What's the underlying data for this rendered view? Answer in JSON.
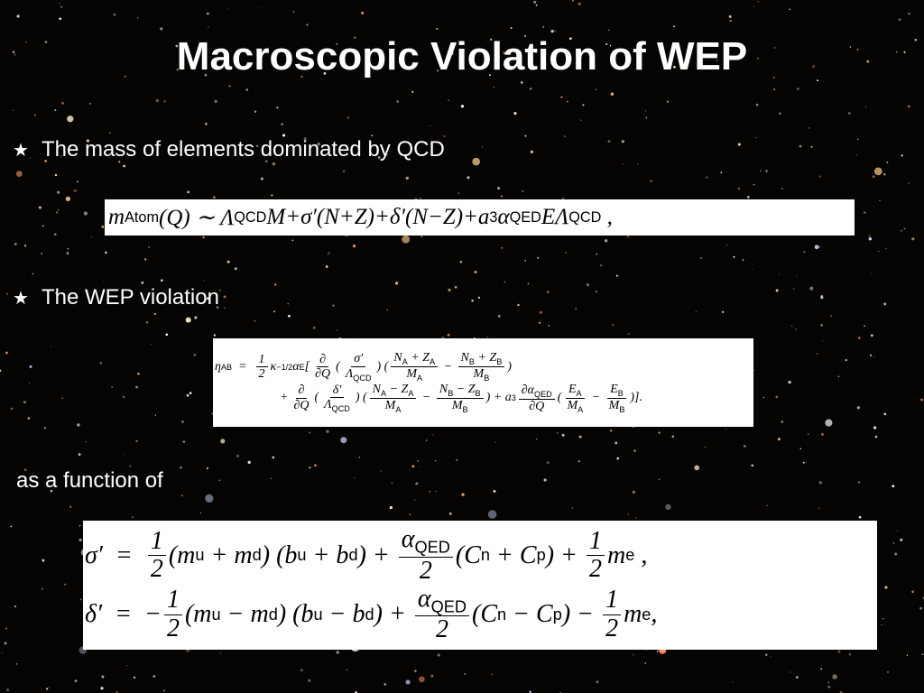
{
  "title": "Macroscopic Violation of WEP",
  "bullets": [
    "The mass of elements dominated by QCD",
    "The WEP violation"
  ],
  "note": "as a function of",
  "equations": [
    {
      "lines": [
        [
          {
            "t": "m",
            "sub": "Atom"
          },
          {
            "t": "(Q) ∼ Λ",
            "sub": "QCD"
          },
          {
            "t": "M+σ′(N+Z)+δ′(N−Z)+a",
            "sub": "3"
          },
          {
            "t": "α",
            "sub": "QED"
          },
          {
            "t": "EΛ",
            "sub": "QCD"
          },
          {
            "t": " ,"
          }
        ]
      ]
    },
    {
      "lines": [
        [
          {
            "t": "η",
            "sub": "AB"
          },
          {
            "t": "  =  "
          },
          {
            "num": [
              {
                "t": "1"
              }
            ],
            "den": [
              {
                "t": "2"
              }
            ]
          },
          {
            "t": "κ",
            "sup": "−1/2"
          },
          {
            "t": "α",
            "sub": "E"
          },
          {
            "t": "["
          },
          {
            "num": [
              {
                "t": "∂"
              }
            ],
            "den": [
              {
                "t": "∂Q"
              }
            ]
          },
          {
            "t": "("
          },
          {
            "num": [
              {
                "t": "σ′"
              }
            ],
            "den": [
              {
                "t": "Λ",
                "sub": "QCD"
              }
            ]
          },
          {
            "t": ") ("
          },
          {
            "num": [
              {
                "t": "N",
                "sub": "A"
              },
              {
                "t": " + Z",
                "sub": "A"
              }
            ],
            "den": [
              {
                "t": "M",
                "sub": "A"
              }
            ]
          },
          {
            "t": " − "
          },
          {
            "num": [
              {
                "t": "N",
                "sub": "B"
              },
              {
                "t": " + Z",
                "sub": "B"
              }
            ],
            "den": [
              {
                "t": "M",
                "sub": "B"
              }
            ]
          },
          {
            "t": ")"
          }
        ],
        [
          {
            "t": "+"
          },
          {
            "num": [
              {
                "t": "∂"
              }
            ],
            "den": [
              {
                "t": "∂Q"
              }
            ]
          },
          {
            "t": "("
          },
          {
            "num": [
              {
                "t": "δ′"
              }
            ],
            "den": [
              {
                "t": "Λ",
                "sub": "QCD"
              }
            ]
          },
          {
            "t": ") ("
          },
          {
            "num": [
              {
                "t": "N",
                "sub": "A"
              },
              {
                "t": " − Z",
                "sub": "A"
              }
            ],
            "den": [
              {
                "t": "M",
                "sub": "A"
              }
            ]
          },
          {
            "t": " − "
          },
          {
            "num": [
              {
                "t": "N",
                "sub": "B"
              },
              {
                "t": " − Z",
                "sub": "B"
              }
            ],
            "den": [
              {
                "t": "M",
                "sub": "B"
              }
            ]
          },
          {
            "t": ") + a",
            "sub": "3"
          },
          {
            "num": [
              {
                "t": "∂α",
                "sub": "QED"
              }
            ],
            "den": [
              {
                "t": "∂Q"
              }
            ]
          },
          {
            "t": "("
          },
          {
            "num": [
              {
                "t": "E",
                "sub": "A"
              }
            ],
            "den": [
              {
                "t": "M",
                "sub": "A"
              }
            ]
          },
          {
            "t": " − "
          },
          {
            "num": [
              {
                "t": "E",
                "sub": "B"
              }
            ],
            "den": [
              {
                "t": "M",
                "sub": "B"
              }
            ]
          },
          {
            "t": ")]."
          }
        ]
      ]
    },
    {
      "lines": [
        [
          {
            "t": "σ′  =  "
          },
          {
            "num": [
              {
                "t": "1"
              }
            ],
            "den": [
              {
                "t": "2"
              }
            ]
          },
          {
            "t": "(m",
            "sub": "u"
          },
          {
            "t": " + m",
            "sub": "d"
          },
          {
            "t": ") (b",
            "sub": "u"
          },
          {
            "t": " + b",
            "sub": "d"
          },
          {
            "t": ") + "
          },
          {
            "num": [
              {
                "t": "α",
                "sub": "QED"
              }
            ],
            "den": [
              {
                "t": "2"
              }
            ]
          },
          {
            "t": "(C",
            "sub": "n"
          },
          {
            "t": " + C",
            "sub": "p"
          },
          {
            "t": ") + "
          },
          {
            "num": [
              {
                "t": "1"
              }
            ],
            "den": [
              {
                "t": "2"
              }
            ]
          },
          {
            "t": "m",
            "sub": "e"
          },
          {
            "t": " ,"
          }
        ],
        [
          {
            "t": "δ′  =  −"
          },
          {
            "num": [
              {
                "t": "1"
              }
            ],
            "den": [
              {
                "t": "2"
              }
            ]
          },
          {
            "t": "(m",
            "sub": "u"
          },
          {
            "t": " − m",
            "sub": "d"
          },
          {
            "t": ") (b",
            "sub": "u"
          },
          {
            "t": " − b",
            "sub": "d"
          },
          {
            "t": ") + "
          },
          {
            "num": [
              {
                "t": "α",
                "sub": "QED"
              }
            ],
            "den": [
              {
                "t": "2"
              }
            ]
          },
          {
            "t": "(C",
            "sub": "n"
          },
          {
            "t": " − C",
            "sub": "p"
          },
          {
            "t": ") − "
          },
          {
            "num": [
              {
                "t": "1"
              }
            ],
            "den": [
              {
                "t": "2"
              }
            ]
          },
          {
            "t": "m",
            "sub": "e"
          },
          {
            "t": ","
          }
        ]
      ]
    }
  ]
}
